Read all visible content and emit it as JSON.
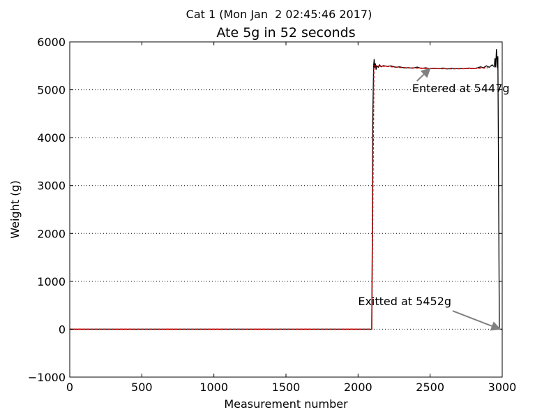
{
  "chart_data": {
    "type": "line",
    "suptitle": "Cat 1 (Mon Jan  2 02:45:46 2017)",
    "title": "Ate 5g in 52 seconds",
    "xlabel": "Measurement number",
    "ylabel": "Weight (g)",
    "xlim": [
      0,
      3000
    ],
    "ylim": [
      -1000,
      6000
    ],
    "xticks": [
      0,
      500,
      1000,
      1500,
      2000,
      2500,
      3000
    ],
    "xtick_labels": [
      "0",
      "500",
      "1000",
      "1500",
      "2000",
      "2500",
      "3000"
    ],
    "yticks": [
      -1000,
      0,
      1000,
      2000,
      3000,
      4000,
      5000,
      6000
    ],
    "ytick_labels": [
      "−1000",
      "0",
      "1000",
      "2000",
      "3000",
      "4000",
      "5000",
      "6000"
    ],
    "grid": "horizontal dotted",
    "series": [
      {
        "color": "#000000",
        "style": "solid",
        "points": [
          [
            0,
            0
          ],
          [
            2095,
            0
          ],
          [
            2100,
            2650
          ],
          [
            2102,
            4400
          ],
          [
            2108,
            5500
          ],
          [
            2112,
            5640
          ],
          [
            2115,
            5460
          ],
          [
            2120,
            5550
          ],
          [
            2125,
            5420
          ],
          [
            2130,
            5500
          ],
          [
            2140,
            5470
          ],
          [
            2150,
            5520
          ],
          [
            2160,
            5480
          ],
          [
            2175,
            5505
          ],
          [
            2200,
            5490
          ],
          [
            2230,
            5500
          ],
          [
            2260,
            5470
          ],
          [
            2290,
            5480
          ],
          [
            2320,
            5455
          ],
          [
            2350,
            5460
          ],
          [
            2380,
            5450
          ],
          [
            2410,
            5475
          ],
          [
            2440,
            5445
          ],
          [
            2470,
            5460
          ],
          [
            2500,
            5440
          ],
          [
            2530,
            5450
          ],
          [
            2560,
            5440
          ],
          [
            2590,
            5455
          ],
          [
            2620,
            5435
          ],
          [
            2650,
            5450
          ],
          [
            2680,
            5440
          ],
          [
            2710,
            5445
          ],
          [
            2740,
            5440
          ],
          [
            2770,
            5455
          ],
          [
            2800,
            5440
          ],
          [
            2830,
            5460
          ],
          [
            2850,
            5480
          ],
          [
            2870,
            5460
          ],
          [
            2890,
            5500
          ],
          [
            2910,
            5470
          ],
          [
            2930,
            5520
          ],
          [
            2945,
            5480
          ],
          [
            2950,
            5660
          ],
          [
            2955,
            5470
          ],
          [
            2960,
            5850
          ],
          [
            2965,
            5600
          ],
          [
            2968,
            5450
          ],
          [
            2970,
            5700
          ],
          [
            2975,
            3000
          ],
          [
            2980,
            0
          ],
          [
            3000,
            0
          ]
        ]
      },
      {
        "color": "#cc0000",
        "style": "dashed",
        "points": [
          [
            0,
            0
          ],
          [
            2095,
            0
          ],
          [
            2110,
            5500
          ],
          [
            2200,
            5490
          ],
          [
            2300,
            5465
          ],
          [
            2400,
            5455
          ],
          [
            2500,
            5445
          ],
          [
            2600,
            5440
          ],
          [
            2700,
            5440
          ],
          [
            2800,
            5445
          ],
          [
            2900,
            5460
          ]
        ]
      }
    ],
    "annotations": [
      {
        "text": "Entered at 5447g",
        "text_x": 2375,
        "text_y": 4950,
        "point": [
          2500,
          5447
        ]
      },
      {
        "text": "Exitted at 5452g",
        "text_x": 2000,
        "text_y": 500,
        "point": [
          2985,
          0
        ]
      }
    ]
  }
}
